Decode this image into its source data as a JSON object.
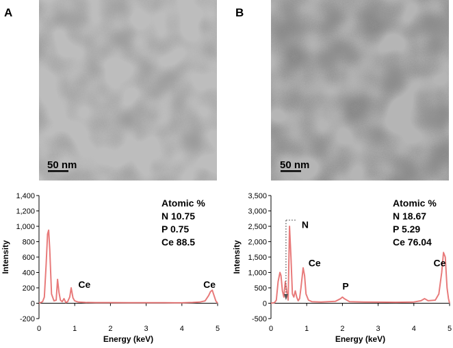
{
  "panels": [
    {
      "letter": "A",
      "scale_bar": "50 nm"
    },
    {
      "letter": "B",
      "scale_bar": "50 nm"
    }
  ],
  "colors": {
    "line": "#e87a7a",
    "axis": "#000000",
    "tem_background": "#b8b8b8",
    "tem_particles": "#5a5a5a"
  },
  "chart_data": [
    {
      "type": "line",
      "xlabel": "Energy (keV)",
      "ylabel": "Intensity",
      "xlim": [
        0,
        5
      ],
      "ylim": [
        -200,
        1400
      ],
      "xticks": [
        "0",
        "1",
        "2",
        "3",
        "4",
        "5"
      ],
      "yticks": [
        "-200",
        "0",
        "200",
        "400",
        "600",
        "800",
        "1,000",
        "1,200",
        "1,400"
      ],
      "series": [
        {
          "x": [
            0.0,
            0.1,
            0.15,
            0.2,
            0.24,
            0.27,
            0.3,
            0.35,
            0.42,
            0.48,
            0.52,
            0.56,
            0.6,
            0.65,
            0.7,
            0.75,
            0.8,
            0.86,
            0.9,
            0.95,
            1.0,
            1.1,
            1.3,
            1.6,
            2.0,
            2.5,
            3.0,
            3.5,
            4.0,
            4.3,
            4.5,
            4.65,
            4.75,
            4.8,
            4.85,
            4.9,
            4.95,
            5.0
          ],
          "values": [
            0,
            20,
            80,
            500,
            900,
            950,
            700,
            120,
            30,
            40,
            310,
            140,
            40,
            20,
            60,
            10,
            20,
            80,
            200,
            70,
            30,
            15,
            10,
            8,
            8,
            7,
            6,
            6,
            5,
            10,
            15,
            30,
            100,
            150,
            170,
            100,
            30,
            0
          ]
        }
      ],
      "annotations": [
        {
          "text": "Ce",
          "x": 1.1,
          "y": 200
        },
        {
          "text": "Ce",
          "x": 4.6,
          "y": 200
        }
      ],
      "legend_box": {
        "title": "Atomic %",
        "lines": [
          "N 10.75",
          "P 0.75",
          "Ce 88.5"
        ]
      }
    },
    {
      "type": "line",
      "xlabel": "Energy (keV)",
      "ylabel": "Intensity",
      "xlim": [
        0,
        5
      ],
      "ylim": [
        -500,
        3500
      ],
      "xticks": [
        "0",
        "1",
        "2",
        "3",
        "4",
        "5"
      ],
      "yticks": [
        "-500",
        "0",
        "500",
        "1,000",
        "1,500",
        "2,000",
        "2,500",
        "3,000",
        "3,500"
      ],
      "series": [
        {
          "x": [
            0.0,
            0.1,
            0.15,
            0.2,
            0.25,
            0.28,
            0.32,
            0.36,
            0.4,
            0.44,
            0.48,
            0.52,
            0.56,
            0.6,
            0.64,
            0.68,
            0.72,
            0.76,
            0.8,
            0.84,
            0.9,
            0.94,
            0.98,
            1.05,
            1.15,
            1.4,
            1.8,
            1.95,
            2.0,
            2.05,
            2.2,
            2.6,
            3.0,
            3.5,
            4.0,
            4.2,
            4.3,
            4.4,
            4.6,
            4.7,
            4.78,
            4.83,
            4.88,
            4.93,
            4.97,
            5.0
          ],
          "values": [
            0,
            20,
            100,
            700,
            1000,
            900,
            400,
            200,
            700,
            400,
            100,
            2500,
            1500,
            300,
            200,
            400,
            200,
            80,
            150,
            500,
            1150,
            900,
            300,
            100,
            50,
            40,
            60,
            150,
            200,
            150,
            50,
            40,
            35,
            30,
            40,
            80,
            150,
            80,
            100,
            300,
            1000,
            1650,
            1500,
            500,
            150,
            0
          ]
        }
      ],
      "annotations": [
        {
          "text": "N",
          "x": 0.86,
          "y": 2450
        },
        {
          "text": "Ce",
          "x": 1.05,
          "y": 1200
        },
        {
          "text": "P",
          "x": 2.0,
          "y": 450
        },
        {
          "text": "Ce",
          "x": 4.55,
          "y": 1200
        }
      ],
      "legend_box": {
        "title": "Atomic %",
        "lines": [
          "N 18.67",
          "P 5.29",
          "Ce 76.04"
        ]
      }
    }
  ]
}
